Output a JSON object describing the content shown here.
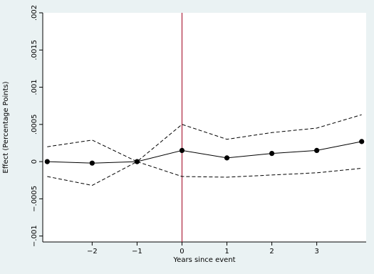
{
  "chart_data": {
    "type": "line",
    "xlabel": "Years since event",
    "ylabel": "Effect (Percentage Points)",
    "xlim": [
      -3.1,
      4.1
    ],
    "ylim": [
      -0.00108,
      0.002
    ],
    "x_ticks": [
      {
        "value": -2,
        "label": "−2"
      },
      {
        "value": -1,
        "label": "−1"
      },
      {
        "value": 0,
        "label": "0"
      },
      {
        "value": 1,
        "label": "1"
      },
      {
        "value": 2,
        "label": "2"
      },
      {
        "value": 3,
        "label": "3"
      }
    ],
    "y_ticks": [
      {
        "value": -0.001,
        "label": "−.001"
      },
      {
        "value": -0.0005,
        "label": "−.0005"
      },
      {
        "value": 0,
        "label": "0"
      },
      {
        "value": 0.0005,
        "label": ".0005"
      },
      {
        "value": 0.001,
        "label": ".001"
      },
      {
        "value": 0.0015,
        "label": ".0015"
      },
      {
        "value": 0.002,
        "label": ".002"
      }
    ],
    "x": [
      -3,
      -2,
      -1,
      0,
      1,
      2,
      3,
      4
    ],
    "series": [
      {
        "role": "estimate",
        "values": [
          0.0,
          -2e-05,
          0.0,
          0.00015,
          5e-05,
          0.00011,
          0.00015,
          0.00027
        ]
      },
      {
        "role": "upper-ci",
        "values": [
          0.0002,
          0.00029,
          0.0,
          0.0005,
          0.0003,
          0.00039,
          0.00045,
          0.00063
        ]
      },
      {
        "role": "lower-ci",
        "values": [
          -0.0002,
          -0.00032,
          0.0,
          -0.0002,
          -0.00021,
          -0.00018,
          -0.00015,
          -9e-05
        ]
      }
    ],
    "vline_x": 0,
    "colors": {
      "estimate": "#000000",
      "ci": "#000000",
      "vline": "#a00020",
      "background": "#eaf2f3",
      "plot_bg": "#ffffff"
    },
    "grid": false,
    "legend": "none"
  }
}
